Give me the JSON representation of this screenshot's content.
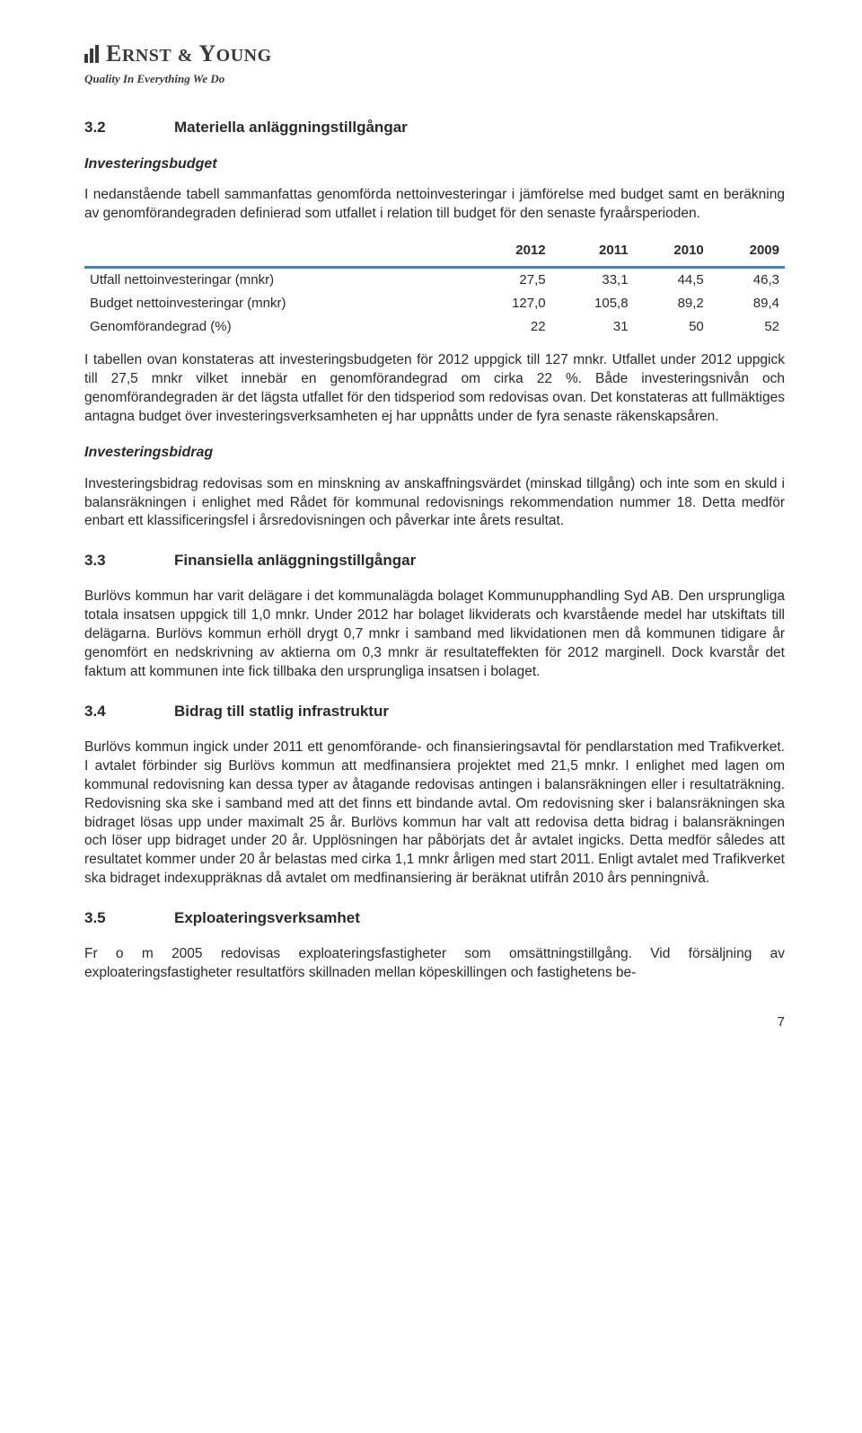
{
  "logo": {
    "name_part1": "E",
    "name_part2": "RNST",
    "name_amp": "&",
    "name_part3": "Y",
    "name_part4": "OUNG",
    "tagline": "Quality In Everything We Do"
  },
  "section_3_2": {
    "num": "3.2",
    "title": "Materiella anläggningstillgångar",
    "sub1_title": "Investeringsbudget",
    "para1": "I nedanstående tabell sammanfattas genomförda nettoinvesteringar i jämförelse med budget samt en beräkning av genomförandegraden definierad som utfallet i relation till budget för den senaste fyraårsperioden.",
    "table": {
      "years": [
        "2012",
        "2011",
        "2010",
        "2009"
      ],
      "rows": [
        {
          "label": "Utfall nettoinvesteringar (mnkr)",
          "vals": [
            "27,5",
            "33,1",
            "44,5",
            "46,3"
          ]
        },
        {
          "label": "Budget nettoinvesteringar (mnkr)",
          "vals": [
            "127,0",
            "105,8",
            "89,2",
            "89,4"
          ]
        },
        {
          "label": "Genomförandegrad (%)",
          "vals": [
            "22",
            "31",
            "50",
            "52"
          ]
        }
      ],
      "header_rule_color": "#4a7fbf"
    },
    "para2": "I tabellen ovan konstateras att investeringsbudgeten för 2012 uppgick till 127 mnkr. Utfallet under 2012 uppgick till 27,5 mnkr vilket innebär en genomförandegrad om cirka 22 %. Både investeringsnivån och genomförandegraden är det lägsta utfallet för den tidsperiod som redovisas ovan. Det konstateras att fullmäktiges antagna budget över investeringsverksamheten ej har uppnåtts under de fyra senaste räkenskapsåren.",
    "sub2_title": "Investeringsbidrag",
    "para3": "Investeringsbidrag redovisas som en minskning av anskaffningsvärdet (minskad tillgång) och inte som en skuld i balansräkningen i enlighet med Rådet för kommunal redovisnings rekommendation nummer 18. Detta medför enbart ett klassificeringsfel i årsredovisningen och påverkar inte årets resultat."
  },
  "section_3_3": {
    "num": "3.3",
    "title": "Finansiella anläggningstillgångar",
    "para1": "Burlövs kommun har varit delägare i det kommunalägda bolaget Kommunupphandling Syd AB. Den ursprungliga totala insatsen uppgick till 1,0 mnkr. Under 2012 har bolaget likviderats och kvarstående medel har utskiftats till delägarna. Burlövs kommun erhöll drygt 0,7 mnkr i samband med likvidationen men då kommunen tidigare år genomfört en nedskrivning av aktierna om 0,3 mnkr är resultateffekten för 2012 marginell. Dock kvarstår det faktum att kommunen inte fick tillbaka den ursprungliga insatsen i bolaget."
  },
  "section_3_4": {
    "num": "3.4",
    "title": "Bidrag till statlig infrastruktur",
    "para1": "Burlövs kommun ingick under 2011 ett genomförande- och finansieringsavtal för pendlarstation med Trafikverket. I avtalet förbinder sig Burlövs kommun att medfinansiera projektet med 21,5 mnkr. I enlighet med lagen om kommunal redovisning kan dessa typer av åtagande redovisas antingen i balansräkningen eller i resultaträkning. Redovisning ska ske i samband med att det finns ett bindande avtal. Om redovisning sker i balansräkningen ska bidraget lösas upp under maximalt 25 år. Burlövs kommun har valt att redovisa detta bidrag i balansräkningen och löser upp bidraget under 20 år. Upplösningen har påbörjats det år avtalet ingicks. Detta medför således att resultatet kommer under 20 år belastas med cirka 1,1 mnkr årligen med start 2011. Enligt avtalet med Trafikverket ska bidraget indexuppräknas då avtalet om medfinansiering är beräknat utifrån 2010 års penningnivå."
  },
  "section_3_5": {
    "num": "3.5",
    "title": "Exploateringsverksamhet",
    "para1": "Fr o m 2005 redovisas exploateringsfastigheter som omsättningstillgång. Vid försäljning av exploateringsfastigheter resultatförs skillnaden mellan köpeskillingen och fastighetens be-"
  },
  "page_number": "7"
}
